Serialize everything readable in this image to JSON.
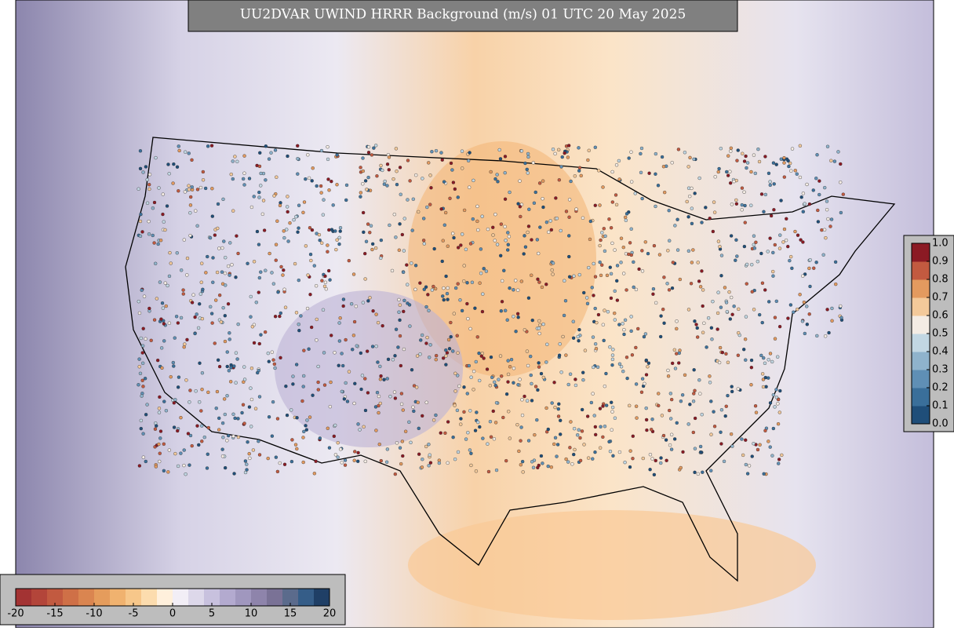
{
  "header": {
    "title": "UU2DVAR UWIND HRRR Background (m/s) 01 UTC 20 May 2025"
  },
  "colorbars": [
    {
      "lim": [
        -20,
        20
      ],
      "ticks": [
        -20,
        -15,
        -10,
        -5,
        0,
        5,
        10,
        15,
        20
      ],
      "colors": [
        "#a33333",
        "#b3453a",
        "#c25a40",
        "#cf7047",
        "#da8550",
        "#e59c5c",
        "#f0b26f",
        "#f7c78a",
        "#fcdcae",
        "#fff0dc",
        "#f2eef6",
        "#ddd8ea",
        "#c8c1de",
        "#b3aacf",
        "#a097be",
        "#8e84ab",
        "#7a7296",
        "#5b6b8c",
        "#355d88",
        "#1f3f66"
      ]
    },
    {
      "lim": [
        0,
        1
      ],
      "ticks": [
        {
          "value": 0,
          "label": "0.0"
        },
        0.1,
        0.2,
        0.3,
        0.4,
        0.5,
        0.6,
        0.7,
        0.8,
        0.9,
        {
          "value": 1,
          "label": "1.0"
        }
      ],
      "colors": [
        "#1f4e79",
        "#3a6f9a",
        "#5f8fb5",
        "#8fb3cc",
        "#c2d7e3",
        "#f4ece4",
        "#f3c99a",
        "#e39a5f",
        "#c25a40",
        "#8b1a24"
      ]
    }
  ]
}
